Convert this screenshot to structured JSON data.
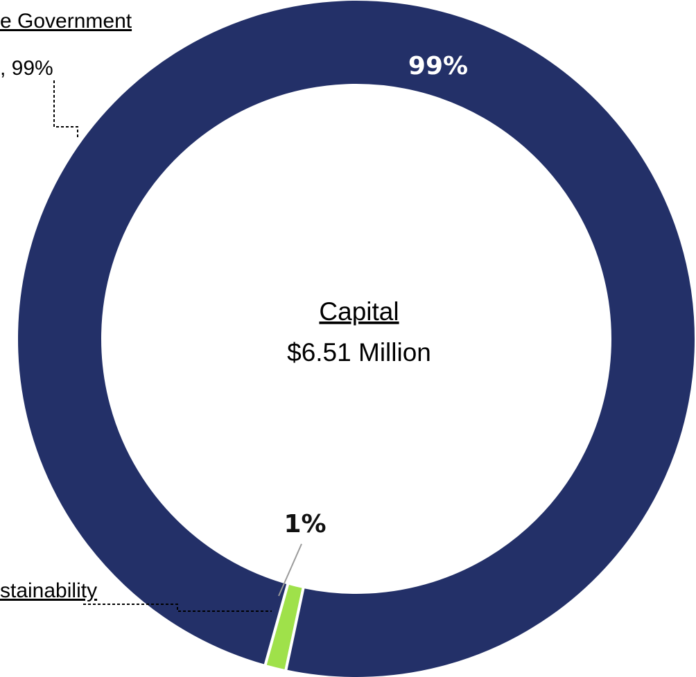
{
  "chart_data": {
    "type": "pie",
    "center_label": {
      "title": "Capital",
      "value": "$6.51 Million"
    },
    "slices": [
      {
        "name": "e Government",
        "detail": ", 99%",
        "value": 99,
        "percent_label": "99%",
        "color": "#233068",
        "label_color": "#ffffff"
      },
      {
        "name": "stainability",
        "value": 1,
        "percent_label": "1%",
        "color": "#9fe14a",
        "label_color": "#111111"
      }
    ]
  }
}
